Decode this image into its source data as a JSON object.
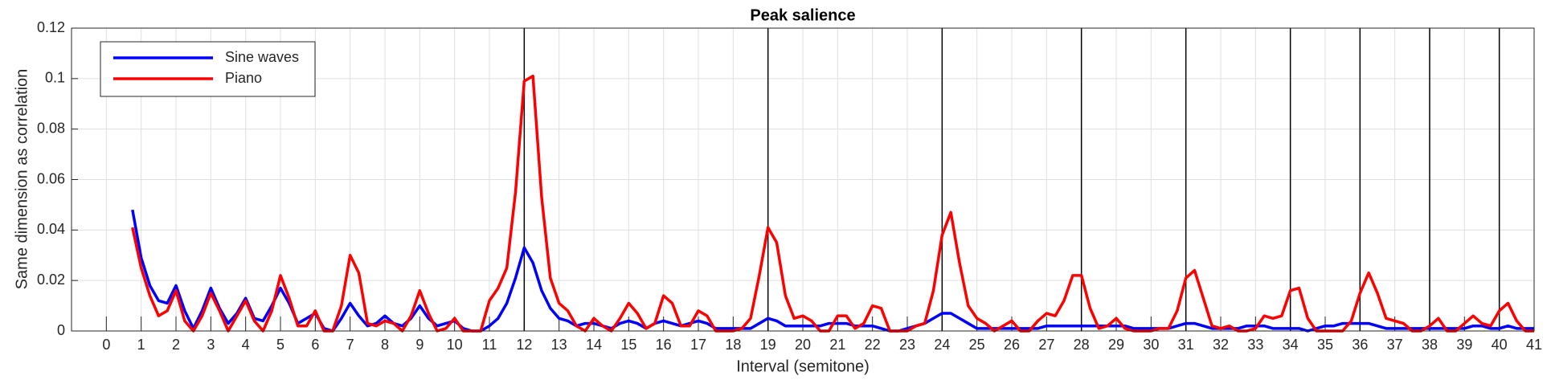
{
  "chart_data": {
    "type": "line",
    "title": "Peak salience",
    "xlabel": "Interval (semitone)",
    "ylabel": "Same dimension as correlation",
    "xlim": [
      -1,
      41
    ],
    "ylim": [
      0,
      0.12
    ],
    "xticks": [
      0,
      1,
      2,
      3,
      4,
      5,
      6,
      7,
      8,
      9,
      10,
      11,
      12,
      13,
      14,
      15,
      16,
      17,
      18,
      19,
      20,
      21,
      22,
      23,
      24,
      25,
      26,
      27,
      28,
      29,
      30,
      31,
      32,
      33,
      34,
      35,
      36,
      37,
      38,
      39,
      40,
      41
    ],
    "yticks": [
      0,
      0.02,
      0.04,
      0.06,
      0.08,
      0.1,
      0.12
    ],
    "grid": true,
    "legend": "upper left",
    "vlines": [
      12,
      19,
      24,
      28,
      31,
      34,
      36,
      38,
      40
    ],
    "vline_color": "#000000",
    "x": [
      0.75,
      1,
      1.25,
      1.5,
      1.75,
      2,
      2.25,
      2.5,
      2.75,
      3,
      3.25,
      3.5,
      3.75,
      4,
      4.25,
      4.5,
      4.75,
      5,
      5.25,
      5.5,
      5.75,
      6,
      6.25,
      6.5,
      6.75,
      7,
      7.25,
      7.5,
      7.75,
      8,
      8.25,
      8.5,
      8.75,
      9,
      9.25,
      9.5,
      9.75,
      10,
      10.25,
      10.5,
      10.75,
      11,
      11.25,
      11.5,
      11.75,
      12,
      12.25,
      12.5,
      12.75,
      13,
      13.25,
      13.5,
      13.75,
      14,
      14.25,
      14.5,
      14.75,
      15,
      15.25,
      15.5,
      15.75,
      16,
      16.25,
      16.5,
      16.75,
      17,
      17.25,
      17.5,
      17.75,
      18,
      18.25,
      18.5,
      18.75,
      19,
      19.25,
      19.5,
      19.75,
      20,
      20.25,
      20.5,
      20.75,
      21,
      21.25,
      21.5,
      21.75,
      22,
      22.25,
      22.5,
      22.75,
      23,
      23.25,
      23.5,
      23.75,
      24,
      24.25,
      24.5,
      24.75,
      25,
      25.25,
      25.5,
      25.75,
      26,
      26.25,
      26.5,
      26.75,
      27,
      27.25,
      27.5,
      27.75,
      28,
      28.25,
      28.5,
      28.75,
      29,
      29.25,
      29.5,
      29.75,
      30,
      30.25,
      30.5,
      30.75,
      31,
      31.25,
      31.5,
      31.75,
      32,
      32.25,
      32.5,
      32.75,
      33,
      33.25,
      33.5,
      33.75,
      34,
      34.25,
      34.5,
      34.75,
      35,
      35.25,
      35.5,
      35.75,
      36,
      36.25,
      36.5,
      36.75,
      37,
      37.25,
      37.5,
      37.75,
      38,
      38.25,
      38.5,
      38.75,
      39,
      39.25,
      39.5,
      39.75,
      40,
      40.25,
      40.5,
      40.75,
      41
    ],
    "series": [
      {
        "name": "Sine waves",
        "color": "#0000ff",
        "values": [
          0.048,
          0.029,
          0.018,
          0.012,
          0.011,
          0.018,
          0.008,
          0.001,
          0.008,
          0.017,
          0.009,
          0.003,
          0.007,
          0.013,
          0.005,
          0.004,
          0.01,
          0.017,
          0.011,
          0.003,
          0.005,
          0.007,
          0.001,
          0,
          0.005,
          0.011,
          0.006,
          0.002,
          0.003,
          0.006,
          0.003,
          0.002,
          0.005,
          0.01,
          0.005,
          0.002,
          0.003,
          0.004,
          0.001,
          0,
          0,
          0.002,
          0.005,
          0.011,
          0.021,
          0.033,
          0.027,
          0.016,
          0.009,
          0.005,
          0.004,
          0.002,
          0.003,
          0.003,
          0.002,
          0.001,
          0.003,
          0.004,
          0.003,
          0.001,
          0.003,
          0.004,
          0.003,
          0.002,
          0.003,
          0.004,
          0.003,
          0.001,
          0.001,
          0.001,
          0.001,
          0.001,
          0.003,
          0.005,
          0.004,
          0.002,
          0.002,
          0.002,
          0.002,
          0.002,
          0.003,
          0.003,
          0.003,
          0.002,
          0.002,
          0.002,
          0.001,
          0,
          0,
          0.001,
          0.002,
          0.003,
          0.005,
          0.007,
          0.007,
          0.005,
          0.003,
          0.001,
          0.001,
          0.001,
          0.001,
          0.001,
          0.001,
          0.001,
          0.001,
          0.002,
          0.002,
          0.002,
          0.002,
          0.002,
          0.002,
          0.002,
          0.002,
          0.002,
          0.002,
          0.001,
          0.001,
          0.001,
          0.001,
          0.001,
          0.002,
          0.003,
          0.003,
          0.002,
          0.001,
          0.001,
          0.001,
          0.001,
          0.002,
          0.002,
          0.002,
          0.001,
          0.001,
          0.001,
          0.001,
          0,
          0.001,
          0.002,
          0.002,
          0.003,
          0.003,
          0.003,
          0.003,
          0.002,
          0.001,
          0.001,
          0.001,
          0.001,
          0.001,
          0.001,
          0.001,
          0.001,
          0.001,
          0.001,
          0.002,
          0.002,
          0.001,
          0.001,
          0.002,
          0.001,
          0.001,
          0.001
        ]
      },
      {
        "name": "Piano",
        "color": "#ff0000",
        "values": [
          0.041,
          0.025,
          0.014,
          0.006,
          0.008,
          0.016,
          0.004,
          0,
          0.006,
          0.015,
          0.008,
          0,
          0.006,
          0.012,
          0.004,
          0,
          0.008,
          0.022,
          0.013,
          0.002,
          0.002,
          0.008,
          0,
          0,
          0.01,
          0.03,
          0.023,
          0.003,
          0.002,
          0.004,
          0.003,
          0,
          0.006,
          0.016,
          0.007,
          0,
          0.001,
          0.005,
          0,
          0,
          0,
          0.012,
          0.017,
          0.025,
          0.055,
          0.099,
          0.101,
          0.053,
          0.021,
          0.011,
          0.008,
          0.002,
          0,
          0.005,
          0.002,
          0,
          0.005,
          0.011,
          0.007,
          0.001,
          0.003,
          0.014,
          0.011,
          0.002,
          0.002,
          0.008,
          0.006,
          0,
          0,
          0,
          0.001,
          0.005,
          0.022,
          0.041,
          0.035,
          0.014,
          0.005,
          0.006,
          0.004,
          0,
          0,
          0.006,
          0.006,
          0.001,
          0.003,
          0.01,
          0.009,
          0,
          0,
          0,
          0.002,
          0.003,
          0.016,
          0.038,
          0.047,
          0.027,
          0.01,
          0.005,
          0.003,
          0,
          0.002,
          0.004,
          0,
          0,
          0.004,
          0.007,
          0.006,
          0.012,
          0.022,
          0.022,
          0.009,
          0.001,
          0.002,
          0.005,
          0.001,
          0,
          0,
          0,
          0.001,
          0.001,
          0.008,
          0.021,
          0.024,
          0.013,
          0.002,
          0.001,
          0.002,
          0,
          0,
          0.001,
          0.006,
          0.005,
          0.006,
          0.016,
          0.017,
          0.005,
          0,
          0,
          0,
          0,
          0.004,
          0.015,
          0.023,
          0.015,
          0.005,
          0.004,
          0.003,
          0,
          0,
          0.002,
          0.005,
          0,
          0,
          0.003,
          0.006,
          0.003,
          0.002,
          0.008,
          0.011,
          0.004,
          0,
          0
        ]
      }
    ]
  }
}
